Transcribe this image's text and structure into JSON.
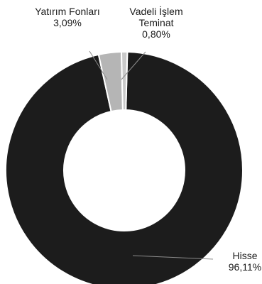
{
  "chart_data": {
    "type": "donut",
    "title": "",
    "slices": [
      {
        "label_lines": [
          "Hisse",
          "96,11%"
        ],
        "value": 96.11,
        "color": "#1c1c1c"
      },
      {
        "label_lines": [
          "Yatırım Fonları",
          "3,09%"
        ],
        "value": 3.09,
        "color": "#b5b5b5"
      },
      {
        "label_lines": [
          "Vadeli İşlem",
          "Teminat",
          "0,80%"
        ],
        "value": 0.8,
        "color": "#c9c9c9"
      }
    ],
    "legend": "none",
    "slice_border_color": "#ffffff",
    "leader_line_color": "#8c8c8c"
  }
}
